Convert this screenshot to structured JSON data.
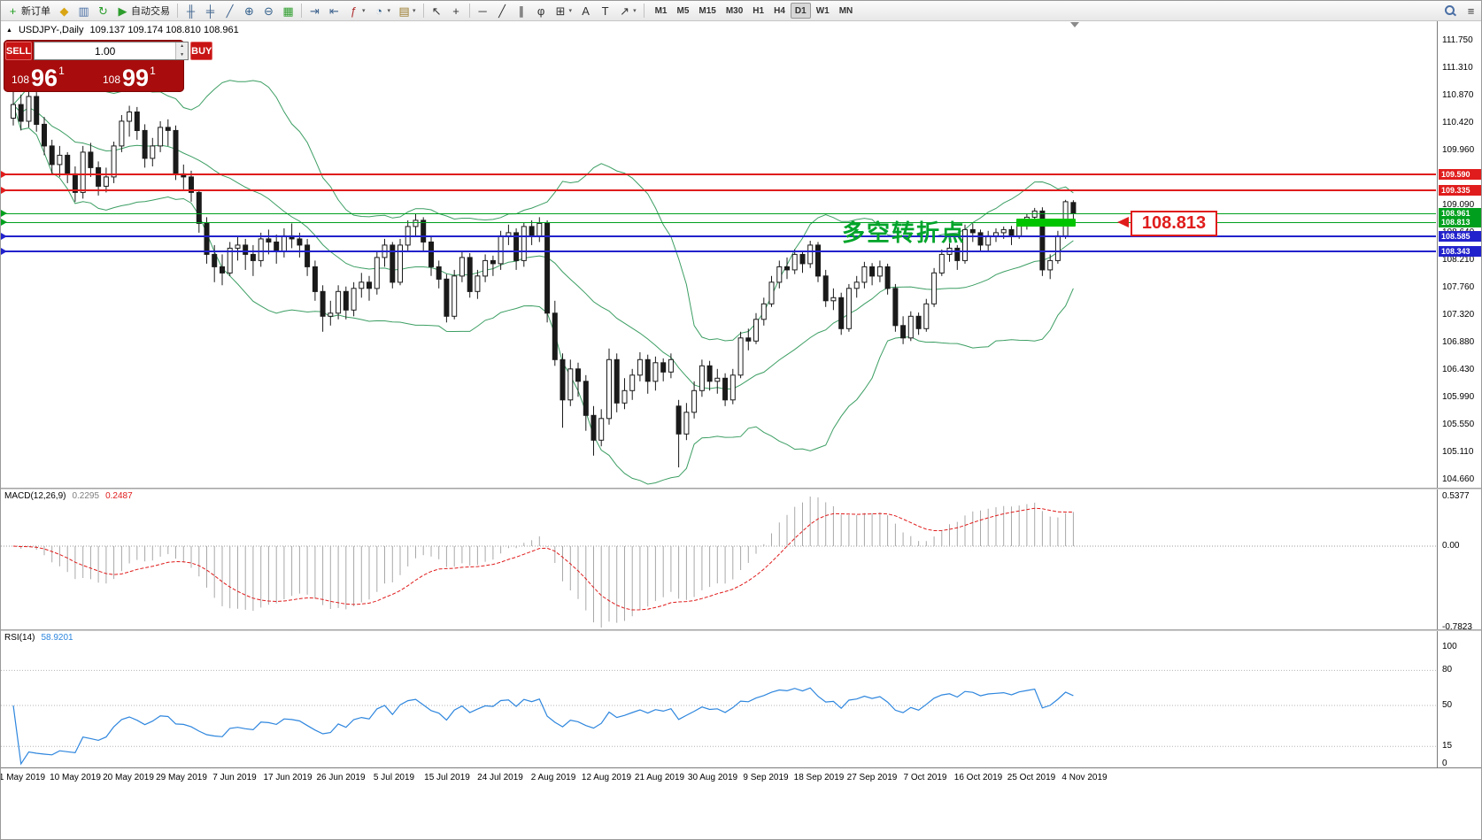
{
  "toolbar": {
    "caret_glyph": "▾",
    "items": [
      {
        "name": "new-order-button",
        "icon": "new-order-icon",
        "glyph": "+",
        "color": "#1f9d1f",
        "label": "新订单"
      },
      {
        "name": "profiles-button",
        "icon": "profiles-icon",
        "glyph": "◆",
        "color": "#d9a514"
      },
      {
        "name": "market-watch-button",
        "icon": "market-watch-icon",
        "glyph": "▥",
        "color": "#4a6fa5"
      },
      {
        "name": "refresh-button",
        "icon": "refresh-icon",
        "glyph": "↻",
        "color": "#2d9d2d"
      },
      {
        "name": "autotrading-button",
        "icon": "autotrading-icon",
        "glyph": "▶",
        "color": "#2d9d2d",
        "label": "自动交易"
      },
      {
        "sep": true
      },
      {
        "name": "bar-chart-button",
        "icon": "bar-chart-icon",
        "glyph": "╫",
        "color": "#41658f"
      },
      {
        "name": "candlestick-chart-button",
        "icon": "candlestick-chart-icon",
        "glyph": "╪",
        "color": "#41658f"
      },
      {
        "name": "line-chart-button",
        "icon": "line-chart-icon",
        "glyph": "╱",
        "color": "#41658f"
      },
      {
        "name": "zoom-in-button",
        "icon": "zoom-in-icon",
        "glyph": "⊕",
        "color": "#34618c"
      },
      {
        "name": "zoom-out-button",
        "icon": "zoom-out-icon",
        "glyph": "⊖",
        "color": "#34618c"
      },
      {
        "name": "tile-windows-button",
        "icon": "tile-windows-icon",
        "glyph": "▦",
        "color": "#2d9d2d"
      },
      {
        "sep": true
      },
      {
        "name": "auto-scroll-button",
        "icon": "auto-scroll-icon",
        "glyph": "⇥",
        "color": "#41658f"
      },
      {
        "name": "chart-shift-button",
        "icon": "chart-shift-icon",
        "glyph": "⇤",
        "color": "#41658f"
      },
      {
        "name": "indicators-button",
        "icon": "indicators-icon",
        "glyph": "ƒ",
        "color": "#b03030",
        "caret": true
      },
      {
        "name": "periods-button",
        "icon": "periods-icon",
        "glyph": "◔",
        "color": "#34618c",
        "caret": true
      },
      {
        "name": "templates-button",
        "icon": "templates-icon",
        "glyph": "▤",
        "color": "#9a7b2d",
        "caret": true
      },
      {
        "sep": true
      },
      {
        "name": "cursor-button",
        "icon": "cursor-icon",
        "glyph": "↖",
        "color": "#333333"
      },
      {
        "name": "crosshair-button",
        "icon": "crosshair-icon",
        "glyph": "+",
        "color": "#333333"
      },
      {
        "sep": true
      },
      {
        "name": "horizontal-line-button",
        "icon": "horizontal-line-icon",
        "glyph": "─",
        "color": "#333333"
      },
      {
        "name": "trendline-button",
        "icon": "trendline-icon",
        "glyph": "╱",
        "color": "#333333"
      },
      {
        "name": "channel-button",
        "icon": "channel-icon",
        "glyph": "∥",
        "color": "#333333"
      },
      {
        "name": "fibonacci-button",
        "icon": "fibonacci-icon",
        "glyph": "φ",
        "color": "#333333"
      },
      {
        "name": "shapes-button",
        "icon": "shapes-icon",
        "glyph": "⊞",
        "color": "#333333",
        "caret": true
      },
      {
        "name": "text-button",
        "icon": "text-icon",
        "glyph": "A",
        "color": "#333333"
      },
      {
        "name": "text-label-button",
        "icon": "text-label-icon",
        "glyph": "T",
        "color": "#333333"
      },
      {
        "name": "arrows-button",
        "icon": "arrows-icon",
        "glyph": "↗",
        "color": "#333333",
        "caret": true
      },
      {
        "sep": true
      }
    ],
    "timeframes": {
      "items": [
        "M1",
        "M5",
        "M15",
        "M30",
        "H1",
        "H4",
        "D1",
        "W1",
        "MN"
      ],
      "active": "D1"
    },
    "right_items": [
      {
        "name": "search-button",
        "icon": "search-icon",
        "glyph": "css-magnifier"
      },
      {
        "name": "quick-menu-button",
        "icon": "menu-icon",
        "glyph": "≡",
        "color": "#333333"
      }
    ]
  },
  "header": {
    "collapse": "▲",
    "symbol": "USDJPY-,Daily",
    "ohlc": "109.137 109.174 108.810 108.961"
  },
  "trade": {
    "sell_label": "SELL",
    "buy_label": "BUY",
    "lot": "1.00",
    "spin_up": "▲",
    "spin_down": "▼",
    "sell": {
      "base": "108",
      "big": "96",
      "sup": "1"
    },
    "buy": {
      "base": "108",
      "big": "99",
      "sup": "1"
    }
  },
  "annotation": {
    "text": "多空转折点",
    "color": "#00a42a"
  },
  "callout": {
    "text": "108.813",
    "color": "#e01c1c"
  },
  "highlight_bar": {
    "start_index": 130,
    "end_index": 137,
    "price": 108.813,
    "color": "#00c400"
  },
  "hlines": [
    {
      "price": 109.59,
      "label": "109.590",
      "color": "#e01c1c",
      "thickness": 2
    },
    {
      "price": 109.335,
      "label": "109.335",
      "color": "#e01c1c",
      "thickness": 2
    },
    {
      "price": 108.961,
      "label": "108.961",
      "color": "#00a01e",
      "thickness": 1
    },
    {
      "price": 108.813,
      "label": "108.813",
      "color": "#00a01e",
      "thickness": 1
    },
    {
      "price": 108.585,
      "label": "108.585",
      "color": "#2222cc",
      "thickness": 2
    },
    {
      "price": 108.343,
      "label": "108.343",
      "color": "#2222cc",
      "thickness": 2
    }
  ],
  "price_axis": {
    "labels": [
      "111.750",
      "111.310",
      "110.870",
      "110.420",
      "109.960",
      "109.530",
      "109.090",
      "108.640",
      "108.210",
      "107.760",
      "107.320",
      "106.880",
      "106.430",
      "105.990",
      "105.550",
      "105.110",
      "104.660"
    ]
  },
  "time_axis": {
    "labels": [
      "1 May 2019",
      "10 May 2019",
      "20 May 2019",
      "29 May 2019",
      "7 Jun 2019",
      "17 Jun 2019",
      "26 Jun 2019",
      "5 Jul 2019",
      "15 Jul 2019",
      "24 Jul 2019",
      "2 Aug 2019",
      "12 Aug 2019",
      "21 Aug 2019",
      "30 Aug 2019",
      "9 Sep 2019",
      "18 Sep 2019",
      "27 Sep 2019",
      "7 Oct 2019",
      "16 Oct 2019",
      "25 Oct 2019",
      "4 Nov 2019"
    ]
  },
  "macd": {
    "name": "MACD(12,26,9)",
    "value_main": "0.2295",
    "value_signal": "0.2487",
    "scale": {
      "max": "0.5377",
      "zero": "0.00",
      "min": "-0.7823"
    }
  },
  "rsi": {
    "name": "RSI(14)",
    "value": "58.9201",
    "levels": [
      100,
      80,
      50,
      15,
      0
    ]
  },
  "chart_data": {
    "type": "candlestick",
    "symbol": "USDJPY-",
    "period": "Daily",
    "ohlc_current": {
      "open": 109.137,
      "high": 109.174,
      "low": 108.81,
      "close": 108.961
    },
    "price_range": [
      104.66,
      111.75
    ],
    "indicators": {
      "bollinger": {
        "period": 20,
        "deviation": 2
      },
      "macd": {
        "fast": 12,
        "slow": 26,
        "signal": 9,
        "current": [
          0.2295,
          0.2487
        ]
      },
      "rsi": {
        "period": 14,
        "current": 58.9201
      }
    },
    "style": {
      "bull": "#ffffff",
      "bear": "#1a1a1a",
      "wick": "#1a1a1a",
      "bollinger": "#3c9e63",
      "macd_hist": "#a8a8a8",
      "macd_signal": "#e01c1c",
      "rsi": "#2e86de",
      "grid_dotted": "#b4b4b4"
    },
    "candles": [
      [
        110.5,
        110.95,
        110.38,
        110.72
      ],
      [
        110.72,
        110.88,
        110.3,
        110.45
      ],
      [
        110.45,
        111.0,
        110.35,
        110.85
      ],
      [
        110.85,
        110.92,
        110.28,
        110.4
      ],
      [
        110.4,
        110.52,
        109.9,
        110.05
      ],
      [
        110.05,
        110.15,
        109.6,
        109.75
      ],
      [
        109.75,
        110.05,
        109.55,
        109.9
      ],
      [
        109.9,
        109.95,
        109.45,
        109.6
      ],
      [
        109.6,
        109.72,
        109.15,
        109.3
      ],
      [
        109.3,
        110.05,
        109.2,
        109.95
      ],
      [
        109.95,
        110.1,
        109.55,
        109.7
      ],
      [
        109.7,
        109.8,
        109.25,
        109.4
      ],
      [
        109.4,
        109.7,
        109.3,
        109.55
      ],
      [
        109.55,
        110.12,
        109.45,
        110.05
      ],
      [
        110.05,
        110.55,
        109.95,
        110.45
      ],
      [
        110.45,
        110.7,
        110.2,
        110.6
      ],
      [
        110.6,
        110.68,
        110.15,
        110.3
      ],
      [
        110.3,
        110.4,
        109.7,
        109.85
      ],
      [
        109.85,
        110.18,
        109.72,
        110.05
      ],
      [
        110.05,
        110.45,
        109.95,
        110.35
      ],
      [
        110.35,
        110.48,
        110.05,
        110.3
      ],
      [
        110.3,
        110.38,
        109.5,
        109.6
      ],
      [
        109.6,
        109.75,
        109.35,
        109.55
      ],
      [
        109.55,
        109.65,
        109.15,
        109.3
      ],
      [
        109.3,
        109.35,
        108.65,
        108.8
      ],
      [
        108.8,
        108.9,
        108.15,
        108.3
      ],
      [
        108.3,
        108.45,
        107.85,
        108.1
      ],
      [
        108.1,
        108.3,
        107.8,
        108.0
      ],
      [
        108.0,
        108.5,
        107.95,
        108.4
      ],
      [
        108.4,
        108.6,
        108.2,
        108.45
      ],
      [
        108.45,
        108.55,
        108.05,
        108.3
      ],
      [
        108.3,
        108.45,
        107.95,
        108.2
      ],
      [
        108.2,
        108.65,
        108.1,
        108.55
      ],
      [
        108.55,
        108.7,
        108.3,
        108.5
      ],
      [
        108.5,
        108.62,
        108.15,
        108.35
      ],
      [
        108.35,
        108.72,
        108.25,
        108.6
      ],
      [
        108.6,
        108.8,
        108.4,
        108.55
      ],
      [
        108.55,
        108.65,
        108.25,
        108.45
      ],
      [
        108.45,
        108.55,
        107.95,
        108.1
      ],
      [
        108.1,
        108.2,
        107.55,
        107.7
      ],
      [
        107.7,
        107.8,
        107.05,
        107.3
      ],
      [
        107.3,
        107.55,
        107.15,
        107.35
      ],
      [
        107.35,
        107.8,
        107.25,
        107.7
      ],
      [
        107.7,
        107.78,
        107.25,
        107.4
      ],
      [
        107.4,
        107.85,
        107.3,
        107.75
      ],
      [
        107.75,
        108.0,
        107.6,
        107.85
      ],
      [
        107.85,
        107.95,
        107.55,
        107.75
      ],
      [
        107.75,
        108.35,
        107.65,
        108.25
      ],
      [
        108.25,
        108.55,
        108.1,
        108.45
      ],
      [
        108.45,
        108.5,
        107.75,
        107.85
      ],
      [
        107.85,
        108.55,
        107.8,
        108.45
      ],
      [
        108.45,
        108.85,
        108.35,
        108.75
      ],
      [
        108.75,
        108.95,
        108.6,
        108.85
      ],
      [
        108.85,
        108.9,
        108.35,
        108.5
      ],
      [
        108.5,
        108.6,
        107.95,
        108.1
      ],
      [
        108.1,
        108.2,
        107.75,
        107.9
      ],
      [
        107.9,
        107.98,
        107.2,
        107.3
      ],
      [
        107.3,
        108.05,
        107.25,
        107.95
      ],
      [
        107.95,
        108.35,
        107.85,
        108.25
      ],
      [
        108.25,
        108.32,
        107.6,
        107.7
      ],
      [
        107.7,
        108.05,
        107.58,
        107.95
      ],
      [
        107.95,
        108.3,
        107.85,
        108.2
      ],
      [
        108.2,
        108.28,
        107.95,
        108.15
      ],
      [
        108.15,
        108.68,
        108.05,
        108.6
      ],
      [
        108.6,
        108.78,
        108.45,
        108.65
      ],
      [
        108.65,
        108.72,
        108.05,
        108.2
      ],
      [
        108.2,
        108.82,
        108.1,
        108.75
      ],
      [
        108.75,
        108.85,
        108.45,
        108.6
      ],
      [
        108.6,
        108.9,
        108.5,
        108.8
      ],
      [
        108.8,
        108.85,
        107.2,
        107.35
      ],
      [
        107.35,
        107.55,
        106.5,
        106.6
      ],
      [
        106.6,
        106.7,
        105.5,
        105.95
      ],
      [
        105.95,
        106.6,
        105.85,
        106.45
      ],
      [
        106.45,
        106.55,
        106.0,
        106.25
      ],
      [
        106.25,
        106.35,
        105.45,
        105.7
      ],
      [
        105.7,
        105.85,
        105.05,
        105.3
      ],
      [
        105.3,
        105.8,
        105.2,
        105.65
      ],
      [
        105.65,
        106.78,
        105.55,
        106.6
      ],
      [
        106.6,
        106.7,
        105.75,
        105.9
      ],
      [
        105.9,
        106.3,
        105.8,
        106.1
      ],
      [
        106.1,
        106.45,
        105.95,
        106.35
      ],
      [
        106.35,
        106.72,
        106.25,
        106.6
      ],
      [
        106.6,
        106.68,
        106.05,
        106.25
      ],
      [
        106.25,
        106.65,
        106.1,
        106.55
      ],
      [
        106.55,
        106.62,
        106.25,
        106.4
      ],
      [
        106.4,
        106.7,
        106.3,
        106.6
      ],
      [
        105.85,
        105.95,
        104.86,
        105.4
      ],
      [
        105.4,
        105.9,
        105.3,
        105.75
      ],
      [
        105.75,
        106.25,
        105.65,
        106.1
      ],
      [
        106.1,
        106.6,
        106.0,
        106.5
      ],
      [
        106.5,
        106.58,
        106.1,
        106.25
      ],
      [
        106.25,
        106.45,
        106.05,
        106.3
      ],
      [
        106.3,
        106.38,
        105.85,
        105.95
      ],
      [
        105.95,
        106.45,
        105.88,
        106.35
      ],
      [
        106.35,
        107.05,
        106.3,
        106.95
      ],
      [
        106.95,
        107.1,
        106.75,
        106.9
      ],
      [
        106.9,
        107.35,
        106.85,
        107.25
      ],
      [
        107.25,
        107.6,
        107.15,
        107.5
      ],
      [
        107.5,
        107.95,
        107.45,
        107.85
      ],
      [
        107.85,
        108.2,
        107.75,
        108.1
      ],
      [
        108.1,
        108.25,
        107.9,
        108.05
      ],
      [
        108.05,
        108.38,
        107.98,
        108.3
      ],
      [
        108.3,
        108.36,
        108.0,
        108.15
      ],
      [
        108.15,
        108.52,
        108.08,
        108.45
      ],
      [
        108.45,
        108.5,
        107.85,
        107.95
      ],
      [
        107.95,
        108.05,
        107.45,
        107.55
      ],
      [
        107.55,
        107.75,
        107.4,
        107.6
      ],
      [
        107.6,
        107.68,
        107.0,
        107.1
      ],
      [
        107.1,
        107.82,
        107.05,
        107.75
      ],
      [
        107.75,
        107.95,
        107.6,
        107.85
      ],
      [
        107.85,
        108.18,
        107.75,
        108.1
      ],
      [
        108.1,
        108.16,
        107.8,
        107.95
      ],
      [
        107.95,
        108.2,
        107.85,
        108.1
      ],
      [
        108.1,
        108.15,
        107.65,
        107.75
      ],
      [
        107.75,
        107.82,
        107.05,
        107.15
      ],
      [
        107.15,
        107.3,
        106.85,
        106.95
      ],
      [
        106.95,
        107.38,
        106.9,
        107.3
      ],
      [
        107.3,
        107.36,
        107.0,
        107.1
      ],
      [
        107.1,
        107.58,
        107.05,
        107.5
      ],
      [
        107.5,
        108.08,
        107.45,
        108.0
      ],
      [
        108.0,
        108.38,
        107.95,
        108.3
      ],
      [
        108.3,
        108.48,
        108.18,
        108.4
      ],
      [
        108.4,
        108.45,
        108.05,
        108.2
      ],
      [
        108.2,
        108.78,
        108.15,
        108.7
      ],
      [
        108.7,
        108.8,
        108.5,
        108.65
      ],
      [
        108.65,
        108.7,
        108.35,
        108.45
      ],
      [
        108.45,
        108.68,
        108.35,
        108.6
      ],
      [
        108.6,
        108.72,
        108.5,
        108.65
      ],
      [
        108.65,
        108.75,
        108.55,
        108.7
      ],
      [
        108.7,
        108.76,
        108.45,
        108.6
      ],
      [
        108.6,
        108.85,
        108.55,
        108.8
      ],
      [
        108.8,
        108.95,
        108.7,
        108.9
      ],
      [
        108.9,
        109.05,
        108.8,
        109.0
      ],
      [
        109.0,
        109.06,
        107.95,
        108.05
      ],
      [
        108.05,
        108.3,
        107.9,
        108.2
      ],
      [
        108.2,
        108.68,
        108.15,
        108.6
      ],
      [
        108.6,
        109.18,
        108.55,
        109.15
      ],
      [
        109.137,
        109.174,
        108.81,
        108.961
      ]
    ]
  }
}
